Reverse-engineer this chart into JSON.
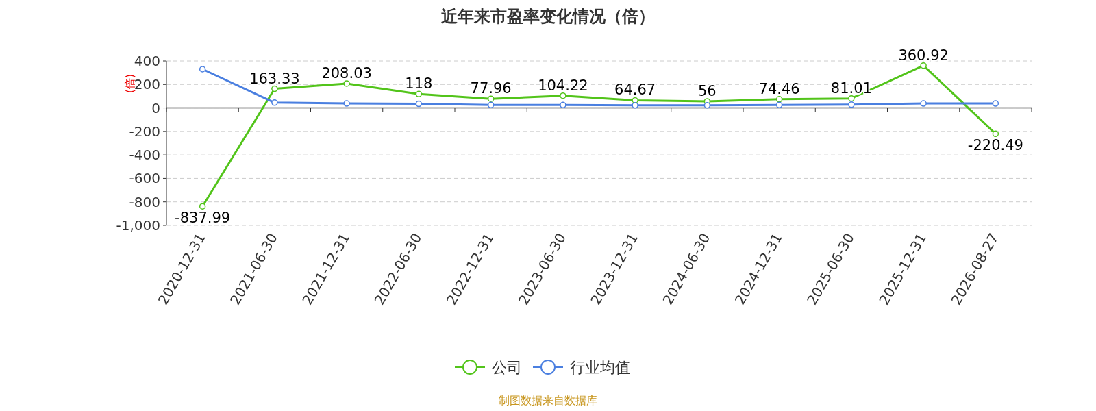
{
  "chart_data": {
    "type": "line",
    "title": "近年来市盈率变化情况（倍）",
    "ylabel": "(倍)",
    "categories": [
      "2020-12-31",
      "2021-06-30",
      "2021-12-31",
      "2022-06-30",
      "2022-12-31",
      "2023-06-30",
      "2023-12-31",
      "2024-06-30",
      "2024-12-31",
      "2025-06-30",
      "2025-12-31",
      "2026-08-27"
    ],
    "series": [
      {
        "name": "公司",
        "color": "#52c41a",
        "values": [
          -837.99,
          163.33,
          208.03,
          118,
          77.96,
          104.22,
          64.67,
          56,
          74.46,
          81.01,
          360.92,
          -220.49
        ],
        "value_labels": [
          "-837.99",
          "163.33",
          "208.03",
          "118",
          "77.96",
          "104.22",
          "64.67",
          "56",
          "74.46",
          "81.01",
          "360.92",
          "-220.49"
        ]
      },
      {
        "name": "行业均值",
        "color": "#4a7fe0",
        "values": [
          330,
          45,
          38,
          35,
          25,
          25,
          22,
          22,
          25,
          28,
          38,
          38
        ]
      }
    ],
    "ylim": [
      -1000,
      400
    ],
    "yticks": [
      {
        "value": -1000,
        "label": "-1,000"
      },
      -800,
      -600,
      -400,
      -200,
      0,
      200,
      400
    ],
    "grid": "y",
    "legend": "bottom",
    "marker": "circle",
    "line_style": "solid",
    "annotations": [
      "制图数据来自数据库"
    ]
  }
}
